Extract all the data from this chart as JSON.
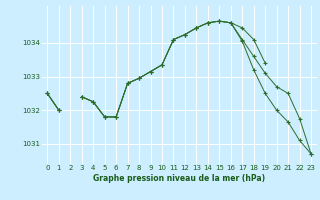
{
  "background_color": "#cceeff",
  "grid_color": "#ffffff",
  "line_color": "#2d6e2d",
  "title": "Graphe pression niveau de la mer (hPa)",
  "xlim": [
    -0.5,
    23.5
  ],
  "ylim": [
    1030.4,
    1035.1
  ],
  "yticks": [
    1031,
    1032,
    1033,
    1034
  ],
  "xticks": [
    0,
    1,
    2,
    3,
    4,
    5,
    6,
    7,
    8,
    9,
    10,
    11,
    12,
    13,
    14,
    15,
    16,
    17,
    18,
    19,
    20,
    21,
    22,
    23
  ],
  "series1": [
    1032.5,
    1032.0,
    null,
    1032.4,
    1032.25,
    1031.8,
    1031.8,
    1032.8,
    1032.95,
    1033.15,
    1033.35,
    1034.1,
    1034.25,
    1034.45,
    1034.6,
    1034.65,
    1034.6,
    1034.45,
    1034.1,
    1033.4,
    null,
    null,
    null,
    null
  ],
  "series2": [
    1032.5,
    1032.0,
    null,
    1032.4,
    1032.25,
    1031.8,
    1031.8,
    1032.8,
    1032.95,
    1033.15,
    1033.35,
    1034.1,
    1034.25,
    1034.45,
    1034.6,
    1034.65,
    1034.6,
    1034.1,
    1033.6,
    1033.1,
    1032.7,
    1032.5,
    1031.75,
    1030.7
  ],
  "series3": [
    1032.5,
    1032.0,
    null,
    1032.4,
    1032.25,
    1031.8,
    1031.8,
    1032.8,
    1032.95,
    1033.15,
    1033.35,
    1034.1,
    1034.25,
    1034.45,
    1034.6,
    1034.65,
    1034.6,
    1034.05,
    1033.2,
    1032.5,
    1032.0,
    1031.65,
    1031.1,
    1030.7
  ]
}
